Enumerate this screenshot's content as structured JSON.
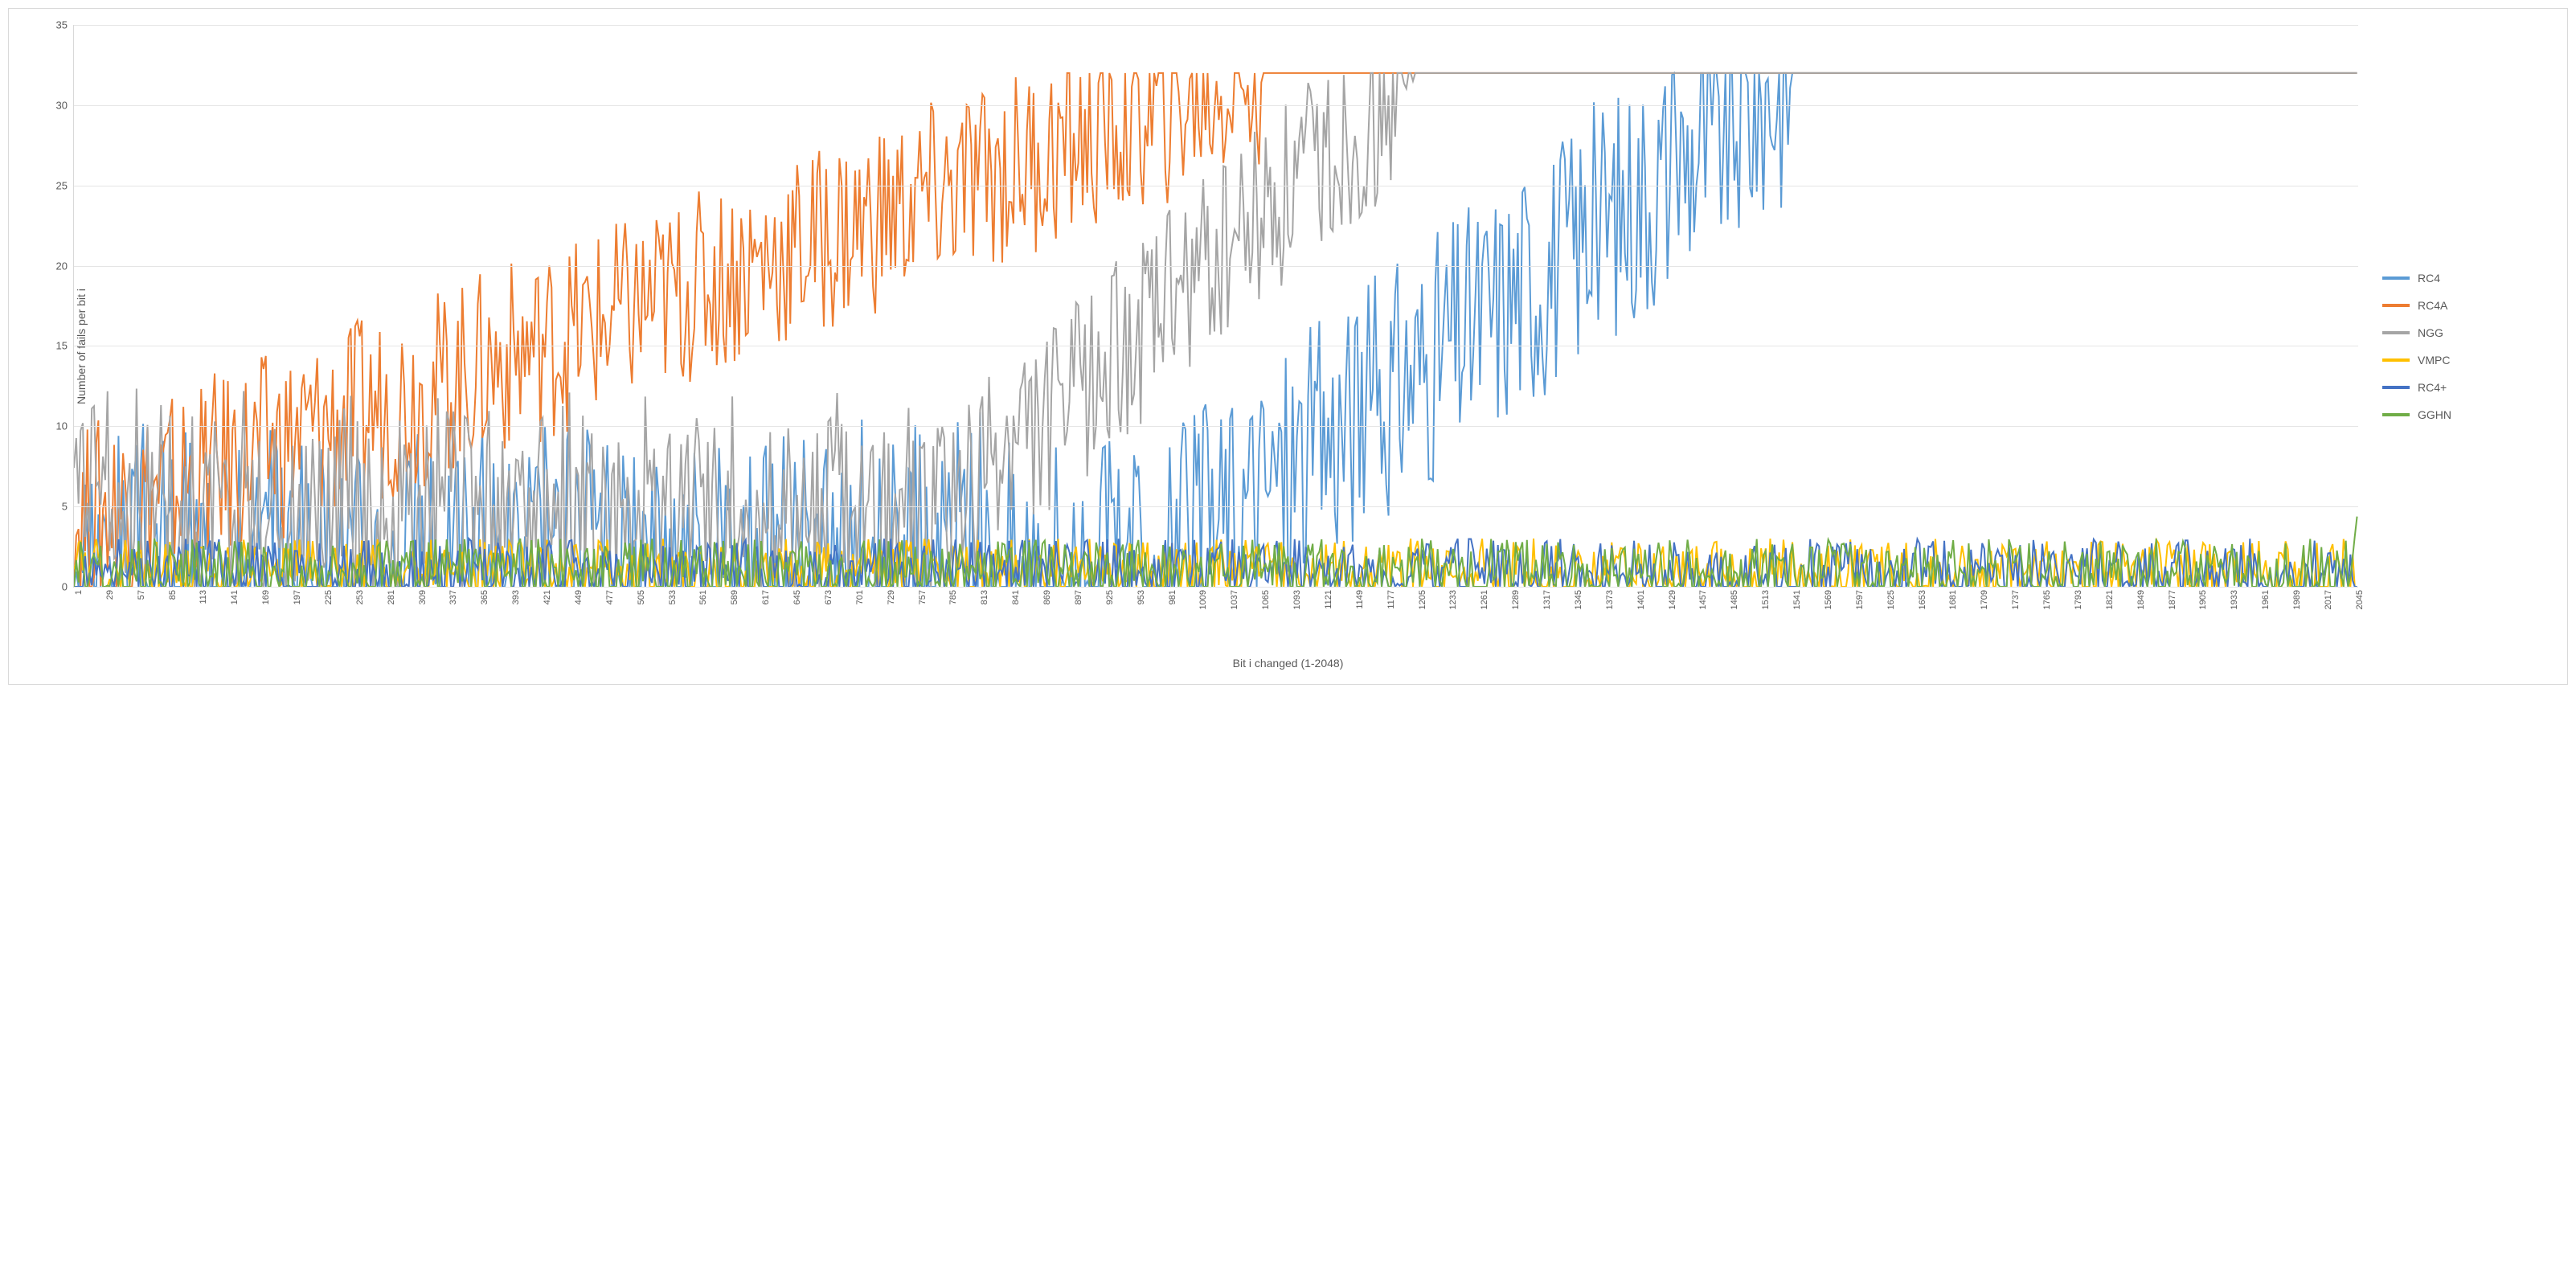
{
  "chart": {
    "type": "line",
    "x_axis_title": "Bit i changed (1-2048)",
    "y_axis_title": "Number  of fails per bit i",
    "xlim": [
      1,
      2048
    ],
    "ylim": [
      0,
      35
    ],
    "ytick_step": 5,
    "x_ticks": [
      1,
      29,
      57,
      85,
      113,
      141,
      169,
      197,
      225,
      253,
      281,
      309,
      337,
      365,
      393,
      421,
      449,
      477,
      505,
      533,
      561,
      589,
      617,
      645,
      673,
      701,
      729,
      757,
      785,
      813,
      841,
      869,
      897,
      925,
      953,
      981,
      1009,
      1037,
      1065,
      1093,
      1121,
      1149,
      1177,
      1205,
      1233,
      1261,
      1289,
      1317,
      1345,
      1373,
      1401,
      1429,
      1457,
      1485,
      1513,
      1541,
      1569,
      1597,
      1625,
      1653,
      1681,
      1709,
      1737,
      1765,
      1793,
      1821,
      1849,
      1877,
      1905,
      1933,
      1961,
      1989,
      2017,
      2045
    ],
    "background_color": "#ffffff",
    "grid_color": "#e5e5e5",
    "border_color": "#d9d9d9",
    "label_color": "#595959",
    "label_fontsize": 13,
    "axis_title_fontsize": 14,
    "legend_position": "right",
    "line_width": 2,
    "series": [
      {
        "name": "RC4",
        "color": "#5b9bd5",
        "shape": "rising",
        "start_x": 953,
        "sat_x": 1541,
        "baseline_low": 0,
        "baseline_high": 3,
        "noise": 8
      },
      {
        "name": "RC4A",
        "color": "#ed7d31",
        "shape": "rising",
        "start_x": 1,
        "sat_x": 1065,
        "baseline_low": 4,
        "baseline_high": 14,
        "noise": 6
      },
      {
        "name": "NGG",
        "color": "#a5a5a5",
        "shape": "rising",
        "start_x": 757,
        "sat_x": 1205,
        "baseline_low": 3,
        "baseline_high": 7,
        "noise": 6
      },
      {
        "name": "VMPC",
        "color": "#ffc000",
        "shape": "flatnoise",
        "start_x": 1,
        "sat_x": 2048,
        "baseline_low": 0,
        "baseline_high": 3,
        "noise": 2
      },
      {
        "name": "RC4+",
        "color": "#4472c4",
        "shape": "flatnoise",
        "start_x": 1,
        "sat_x": 2048,
        "baseline_low": 0,
        "baseline_high": 3,
        "noise": 2
      },
      {
        "name": "GGHN",
        "color": "#70ad47",
        "shape": "flatnoise",
        "start_x": 1,
        "sat_x": 2048,
        "baseline_low": 0,
        "baseline_high": 3,
        "noise": 2,
        "end_spike": 5
      }
    ]
  }
}
